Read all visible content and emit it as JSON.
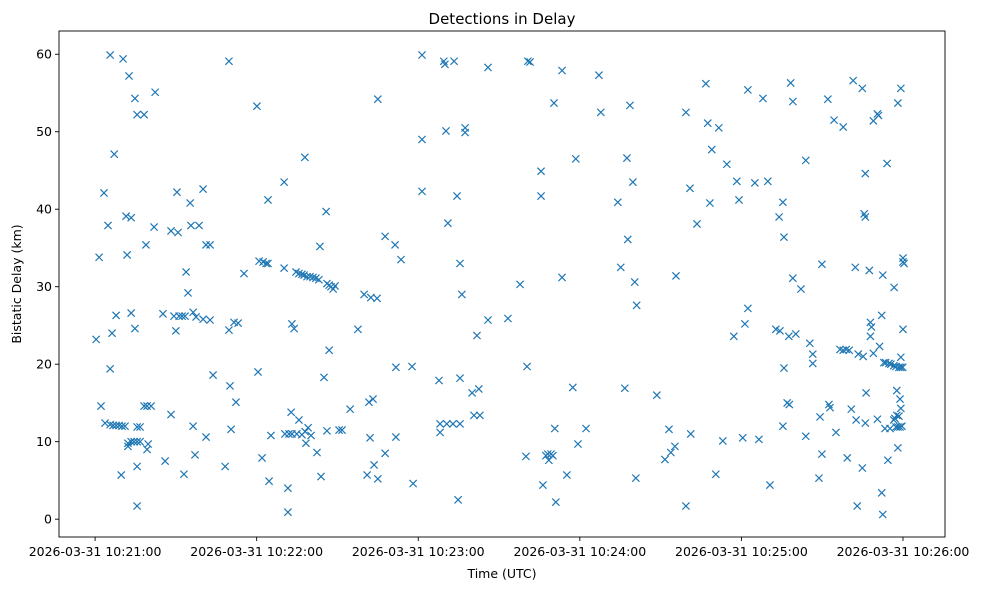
{
  "chart_data": {
    "type": "scatter",
    "title": "Detections in Delay",
    "xlabel": "Time (UTC)",
    "ylabel": "Bistatic Delay (km)",
    "x_origin": "2026-03-31 10:21:00",
    "xlim": [
      -13.4,
      315.6
    ],
    "ylim": [
      -2.3,
      63.0
    ],
    "grid": false,
    "marker": "x",
    "color": "#1f77b4",
    "xticks": [
      {
        "value": 0,
        "label": "2026-03-31 10:21:00"
      },
      {
        "value": 60,
        "label": "2026-03-31 10:22:00"
      },
      {
        "value": 120,
        "label": "2026-03-31 10:23:00"
      },
      {
        "value": 180,
        "label": "2026-03-31 10:24:00"
      },
      {
        "value": 240,
        "label": "2026-03-31 10:25:00"
      },
      {
        "value": 300,
        "label": "2026-03-31 10:26:00"
      }
    ],
    "yticks": [
      {
        "value": 0,
        "label": "0"
      },
      {
        "value": 10,
        "label": "10"
      },
      {
        "value": 20,
        "label": "20"
      },
      {
        "value": 30,
        "label": "30"
      },
      {
        "value": 40,
        "label": "40"
      },
      {
        "value": 50,
        "label": "50"
      },
      {
        "value": 60,
        "label": "60"
      }
    ],
    "points": [
      [
        0.4,
        23.2
      ],
      [
        1.5,
        33.8
      ],
      [
        2.2,
        14.6
      ],
      [
        3.3,
        42.1
      ],
      [
        3.7,
        12.4
      ],
      [
        4.8,
        37.9
      ],
      [
        5.6,
        59.9
      ],
      [
        5.6,
        19.4
      ],
      [
        6.3,
        24.0
      ],
      [
        7.1,
        47.1
      ],
      [
        7.8,
        26.3
      ],
      [
        5.6,
        12.2
      ],
      [
        6.7,
        12.1
      ],
      [
        7.8,
        12.1
      ],
      [
        8.9,
        12.1
      ],
      [
        10.0,
        12.0
      ],
      [
        11.1,
        12.0
      ],
      [
        9.7,
        5.7
      ],
      [
        10.4,
        59.4
      ],
      [
        11.5,
        39.1
      ],
      [
        11.9,
        34.1
      ],
      [
        12.6,
        57.2
      ],
      [
        12.2,
        9.8
      ],
      [
        12.2,
        9.4
      ],
      [
        13.4,
        10.0
      ],
      [
        14.5,
        10.0
      ],
      [
        15.6,
        10.0
      ],
      [
        16.7,
        10.0
      ],
      [
        13.4,
        38.9
      ],
      [
        13.4,
        26.6
      ],
      [
        14.8,
        54.3
      ],
      [
        14.8,
        24.6
      ],
      [
        15.6,
        52.2
      ],
      [
        15.6,
        11.9
      ],
      [
        15.6,
        6.8
      ],
      [
        15.6,
        1.7
      ],
      [
        16.7,
        11.9
      ],
      [
        18.2,
        52.2
      ],
      [
        18.9,
        35.4
      ],
      [
        18.2,
        14.6
      ],
      [
        19.3,
        14.6
      ],
      [
        20.8,
        14.6
      ],
      [
        19.3,
        9.0
      ],
      [
        19.7,
        9.7
      ],
      [
        21.9,
        37.7
      ],
      [
        22.3,
        55.1
      ],
      [
        25.2,
        26.5
      ],
      [
        26.0,
        7.5
      ],
      [
        28.2,
        37.2
      ],
      [
        28.2,
        13.5
      ],
      [
        29.3,
        26.2
      ],
      [
        30.0,
        24.3
      ],
      [
        30.4,
        42.2
      ],
      [
        30.8,
        37.0
      ],
      [
        31.2,
        26.2
      ],
      [
        32.3,
        26.2
      ],
      [
        33.4,
        26.2
      ],
      [
        33.0,
        5.8
      ],
      [
        33.8,
        31.9
      ],
      [
        34.5,
        29.2
      ],
      [
        35.3,
        40.8
      ],
      [
        35.6,
        37.9
      ],
      [
        36.4,
        26.7
      ],
      [
        36.4,
        12.0
      ],
      [
        37.1,
        8.3
      ],
      [
        37.5,
        26.1
      ],
      [
        38.6,
        37.9
      ],
      [
        40.1,
        42.6
      ],
      [
        40.1,
        25.8
      ],
      [
        41.2,
        35.4
      ],
      [
        41.2,
        10.6
      ],
      [
        42.7,
        35.4
      ],
      [
        42.7,
        25.7
      ],
      [
        43.8,
        18.6
      ],
      [
        48.3,
        6.8
      ],
      [
        49.7,
        59.1
      ],
      [
        49.7,
        24.4
      ],
      [
        50.1,
        17.2
      ],
      [
        50.5,
        11.6
      ],
      [
        51.6,
        25.4
      ],
      [
        52.3,
        15.1
      ],
      [
        53.1,
        25.3
      ],
      [
        55.3,
        31.7
      ],
      [
        60.1,
        53.3
      ],
      [
        60.5,
        19.0
      ],
      [
        60.9,
        33.3
      ],
      [
        62.0,
        7.9
      ],
      [
        62.4,
        33.2
      ],
      [
        63.5,
        33.0
      ],
      [
        64.2,
        33.0
      ],
      [
        64.2,
        41.2
      ],
      [
        64.6,
        4.9
      ],
      [
        65.3,
        10.8
      ],
      [
        70.2,
        43.5
      ],
      [
        70.2,
        32.4
      ],
      [
        70.5,
        11.0
      ],
      [
        71.6,
        4.0
      ],
      [
        72.0,
        11.0
      ],
      [
        73.1,
        11.0
      ],
      [
        71.6,
        0.9
      ],
      [
        72.8,
        13.8
      ],
      [
        73.1,
        25.2
      ],
      [
        73.9,
        24.6
      ],
      [
        74.6,
        31.9
      ],
      [
        75.7,
        31.7
      ],
      [
        76.8,
        31.6
      ],
      [
        77.6,
        31.5
      ],
      [
        78.7,
        31.3
      ],
      [
        79.8,
        31.3
      ],
      [
        80.9,
        31.2
      ],
      [
        82.0,
        31.1
      ],
      [
        83.1,
        30.9
      ],
      [
        74.9,
        11.0
      ],
      [
        75.7,
        12.8
      ],
      [
        76.8,
        10.9
      ],
      [
        77.9,
        46.7
      ],
      [
        78.0,
        11.3
      ],
      [
        78.3,
        9.8
      ],
      [
        79.1,
        11.8
      ],
      [
        80.2,
        10.8
      ],
      [
        82.4,
        8.6
      ],
      [
        83.5,
        35.2
      ],
      [
        83.9,
        5.5
      ],
      [
        85.0,
        18.3
      ],
      [
        85.8,
        39.7
      ],
      [
        86.1,
        11.4
      ],
      [
        86.9,
        21.8
      ],
      [
        86.1,
        30.4
      ],
      [
        86.9,
        30.2
      ],
      [
        87.6,
        30.0
      ],
      [
        88.4,
        29.7
      ],
      [
        89.1,
        30.1
      ],
      [
        90.6,
        11.5
      ],
      [
        91.7,
        11.5
      ],
      [
        94.7,
        14.2
      ],
      [
        97.6,
        24.5
      ],
      [
        99.9,
        29.0
      ],
      [
        101.0,
        5.7
      ],
      [
        101.7,
        15.1
      ],
      [
        102.1,
        10.5
      ],
      [
        102.4,
        28.6
      ],
      [
        103.2,
        15.5
      ],
      [
        103.6,
        7.0
      ],
      [
        104.7,
        28.5
      ],
      [
        105.0,
        54.2
      ],
      [
        105.0,
        5.2
      ],
      [
        107.7,
        36.5
      ],
      [
        107.7,
        8.5
      ],
      [
        111.4,
        35.4
      ],
      [
        111.7,
        19.6
      ],
      [
        111.7,
        10.6
      ],
      [
        113.6,
        33.5
      ],
      [
        117.7,
        19.7
      ],
      [
        118.1,
        4.6
      ],
      [
        121.4,
        59.9
      ],
      [
        121.4,
        49.0
      ],
      [
        121.4,
        42.3
      ],
      [
        127.7,
        17.9
      ],
      [
        128.1,
        12.3
      ],
      [
        128.1,
        11.2
      ],
      [
        129.5,
        59.1
      ],
      [
        129.9,
        58.7
      ],
      [
        130.3,
        50.1
      ],
      [
        130.6,
        12.3
      ],
      [
        131.0,
        38.2
      ],
      [
        132.9,
        12.3
      ],
      [
        133.3,
        59.1
      ],
      [
        134.4,
        41.7
      ],
      [
        134.8,
        2.5
      ],
      [
        135.5,
        33.0
      ],
      [
        135.5,
        18.2
      ],
      [
        135.5,
        12.3
      ],
      [
        136.2,
        29.0
      ],
      [
        137.4,
        50.5
      ],
      [
        137.4,
        49.9
      ],
      [
        140.0,
        16.3
      ],
      [
        140.7,
        13.4
      ],
      [
        141.8,
        23.7
      ],
      [
        142.5,
        16.8
      ],
      [
        142.9,
        13.4
      ],
      [
        145.9,
        58.3
      ],
      [
        145.9,
        25.7
      ],
      [
        153.3,
        25.9
      ],
      [
        157.8,
        30.3
      ],
      [
        160.4,
        19.7
      ],
      [
        160.0,
        8.1
      ],
      [
        160.7,
        59.1
      ],
      [
        161.5,
        59.0
      ],
      [
        165.6,
        44.9
      ],
      [
        165.6,
        41.7
      ],
      [
        166.3,
        4.4
      ],
      [
        167.4,
        8.2
      ],
      [
        168.5,
        7.6
      ],
      [
        169.3,
        8.4
      ],
      [
        170.0,
        8.2
      ],
      [
        168.1,
        8.4
      ],
      [
        170.4,
        53.7
      ],
      [
        170.7,
        11.7
      ],
      [
        171.1,
        2.2
      ],
      [
        173.4,
        57.9
      ],
      [
        173.4,
        31.2
      ],
      [
        175.2,
        5.7
      ],
      [
        177.4,
        17.0
      ],
      [
        178.5,
        46.5
      ],
      [
        179.3,
        9.7
      ],
      [
        182.3,
        11.7
      ],
      [
        187.1,
        57.3
      ],
      [
        187.8,
        52.5
      ],
      [
        194.1,
        40.9
      ],
      [
        195.2,
        32.5
      ],
      [
        196.7,
        16.9
      ],
      [
        197.5,
        46.6
      ],
      [
        197.8,
        36.1
      ],
      [
        198.6,
        53.4
      ],
      [
        199.7,
        43.5
      ],
      [
        200.4,
        30.6
      ],
      [
        200.8,
        5.3
      ],
      [
        201.1,
        27.6
      ],
      [
        208.6,
        16.0
      ],
      [
        211.6,
        7.7
      ],
      [
        213.1,
        11.6
      ],
      [
        213.8,
        8.6
      ],
      [
        215.3,
        9.4
      ],
      [
        215.7,
        31.4
      ],
      [
        219.4,
        52.5
      ],
      [
        219.4,
        1.7
      ],
      [
        220.9,
        42.7
      ],
      [
        221.2,
        11.0
      ],
      [
        223.5,
        38.1
      ],
      [
        226.8,
        56.2
      ],
      [
        227.5,
        51.1
      ],
      [
        228.3,
        40.8
      ],
      [
        229.0,
        47.7
      ],
      [
        230.5,
        5.8
      ],
      [
        231.6,
        50.5
      ],
      [
        233.1,
        10.1
      ],
      [
        234.6,
        45.8
      ],
      [
        237.2,
        23.6
      ],
      [
        238.3,
        43.6
      ],
      [
        239.1,
        41.2
      ],
      [
        240.5,
        10.5
      ],
      [
        241.3,
        25.2
      ],
      [
        242.4,
        27.2
      ],
      [
        242.4,
        55.4
      ],
      [
        245.0,
        43.4
      ],
      [
        246.5,
        10.3
      ],
      [
        248.0,
        54.3
      ],
      [
        249.8,
        43.6
      ],
      [
        250.6,
        4.4
      ],
      [
        252.8,
        24.5
      ],
      [
        254.0,
        39.0
      ],
      [
        254.3,
        24.3
      ],
      [
        255.4,
        40.9
      ],
      [
        255.8,
        36.4
      ],
      [
        255.4,
        12.0
      ],
      [
        255.8,
        19.5
      ],
      [
        257.0,
        15.0
      ],
      [
        257.6,
        23.6
      ],
      [
        257.8,
        14.8
      ],
      [
        258.3,
        56.3
      ],
      [
        259.1,
        53.9
      ],
      [
        259.1,
        31.1
      ],
      [
        260.2,
        23.9
      ],
      [
        262.1,
        29.7
      ],
      [
        263.9,
        46.3
      ],
      [
        263.9,
        10.7
      ],
      [
        265.4,
        22.7
      ],
      [
        266.5,
        21.3
      ],
      [
        266.5,
        20.1
      ],
      [
        268.8,
        5.3
      ],
      [
        269.2,
        13.2
      ],
      [
        269.9,
        8.4
      ],
      [
        269.9,
        32.9
      ],
      [
        272.1,
        54.2
      ],
      [
        272.5,
        14.8
      ],
      [
        272.9,
        14.4
      ],
      [
        274.4,
        51.5
      ],
      [
        275.1,
        11.2
      ],
      [
        276.6,
        21.9
      ],
      [
        277.8,
        21.8
      ],
      [
        278.9,
        21.9
      ],
      [
        280.0,
        21.8
      ],
      [
        277.8,
        50.6
      ],
      [
        279.3,
        7.9
      ],
      [
        280.8,
        14.2
      ],
      [
        281.5,
        56.6
      ],
      [
        282.3,
        32.5
      ],
      [
        282.6,
        12.8
      ],
      [
        283.0,
        1.7
      ],
      [
        283.4,
        21.3
      ],
      [
        284.9,
        55.6
      ],
      [
        285.2,
        21.0
      ],
      [
        284.9,
        6.6
      ],
      [
        285.6,
        39.4
      ],
      [
        286.0,
        39.0
      ],
      [
        286.0,
        44.6
      ],
      [
        286.0,
        12.4
      ],
      [
        286.3,
        16.3
      ],
      [
        287.5,
        32.1
      ],
      [
        287.9,
        23.6
      ],
      [
        288.3,
        24.8
      ],
      [
        287.9,
        25.4
      ],
      [
        289.0,
        51.4
      ],
      [
        289.0,
        21.4
      ],
      [
        290.5,
        12.9
      ],
      [
        290.5,
        52.3
      ],
      [
        290.9,
        52.1
      ],
      [
        291.3,
        22.3
      ],
      [
        292.1,
        3.4
      ],
      [
        292.5,
        31.5
      ],
      [
        292.1,
        26.3
      ],
      [
        292.5,
        0.6
      ],
      [
        293.3,
        11.7
      ],
      [
        294.1,
        45.9
      ],
      [
        294.4,
        7.6
      ],
      [
        295.2,
        11.7
      ],
      [
        296.7,
        29.9
      ],
      [
        292.9,
        20.2
      ],
      [
        293.6,
        20.2
      ],
      [
        294.8,
        20.1
      ],
      [
        295.5,
        20.0
      ],
      [
        296.6,
        19.8
      ],
      [
        297.4,
        19.7
      ],
      [
        298.5,
        19.6
      ],
      [
        299.2,
        19.6
      ],
      [
        299.9,
        19.6
      ],
      [
        296.6,
        12.8
      ],
      [
        297.0,
        13.0
      ],
      [
        297.4,
        11.9
      ],
      [
        298.1,
        11.9
      ],
      [
        298.9,
        11.9
      ],
      [
        297.7,
        16.6
      ],
      [
        298.1,
        9.2
      ],
      [
        297.7,
        13.4
      ],
      [
        298.5,
        13.3
      ],
      [
        298.9,
        15.5
      ],
      [
        298.1,
        53.7
      ],
      [
        299.2,
        20.9
      ],
      [
        299.2,
        55.6
      ],
      [
        299.6,
        12.0
      ],
      [
        300.0,
        33.7
      ],
      [
        300.0,
        33.2
      ],
      [
        300.4,
        33.0
      ],
      [
        300.0,
        24.5
      ],
      [
        299.2,
        14.3
      ]
    ]
  }
}
